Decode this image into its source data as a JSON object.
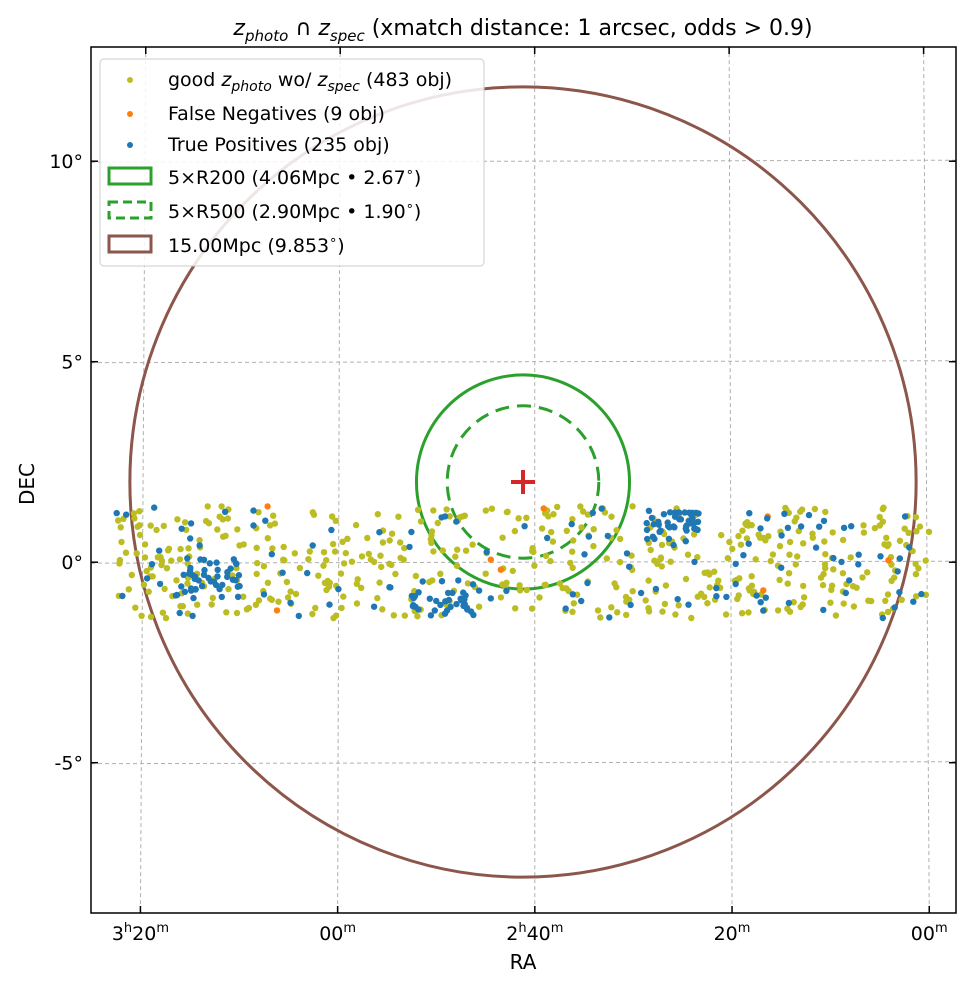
{
  "chart_data": {
    "type": "scatter",
    "title": {
      "z1": "z",
      "z1_sub": "photo",
      "cap": " ∩ ",
      "z2": "z",
      "z2_sub": "spec",
      "rest": " (xmatch distance: 1 arcsec, odds > 0.9)"
    },
    "xlabel": "RA",
    "ylabel": "DEC",
    "xlim_deg": [
      52.2,
      356.6
    ],
    "ylim_deg": [
      -8.7,
      12.9
    ],
    "x_ticks": [
      {
        "ra_deg": 50.0,
        "h": "3",
        "hs": "h",
        "m": "20",
        "ms": "m"
      },
      {
        "ra_deg": 45.0,
        "h": "",
        "hs": "",
        "m": "00",
        "ms": "m"
      },
      {
        "ra_deg": 40.0,
        "h": "2",
        "hs": "h",
        "m": "40",
        "ms": "m"
      },
      {
        "ra_deg": 35.0,
        "h": "",
        "hs": "",
        "m": "20",
        "ms": "m"
      },
      {
        "ra_deg": 30.0,
        "h": "",
        "hs": "",
        "m": "00",
        "ms": "m"
      }
    ],
    "y_ticks": [
      {
        "dec": 10,
        "label": "10°"
      },
      {
        "dec": 5,
        "label": "5°"
      },
      {
        "dec": 0,
        "label": "0°"
      },
      {
        "dec": -5,
        "label": "-5°"
      }
    ],
    "grid": true,
    "center": {
      "ra_deg": 40.3,
      "dec": 2.0,
      "marker": "+",
      "color": "#d62728"
    },
    "circles": [
      {
        "name_a": "5×R200 (4.06Mpc • 2.67",
        "name_b": ")",
        "radius_deg": 2.67,
        "color": "#2ca02c",
        "style": "solid"
      },
      {
        "name_a": "5×R500 (2.90Mpc • 1.90",
        "name_b": ")",
        "radius_deg": 1.9,
        "color": "#2ca02c",
        "style": "dashed"
      },
      {
        "name_a": "15.00Mpc (9.853",
        "name_b": ")",
        "radius_deg": 9.853,
        "color": "#8c564b",
        "style": "solid"
      }
    ],
    "series": [
      {
        "name": {
          "a": "good ",
          "z1": "z",
          "z1_sub": "photo",
          "b": " wo/ ",
          "z2": "z",
          "z2_sub": "spec",
          "c": " (483 obj)"
        },
        "color": "#bcbd22",
        "count": 483
      },
      {
        "name": {
          "a": "False Negatives (9 obj)"
        },
        "color": "#ff7f0e",
        "count": 9
      },
      {
        "name": {
          "a": "True Positives (235 obj)"
        },
        "color": "#1f77b4",
        "count": 235
      }
    ],
    "legend_position": "upper-left"
  }
}
